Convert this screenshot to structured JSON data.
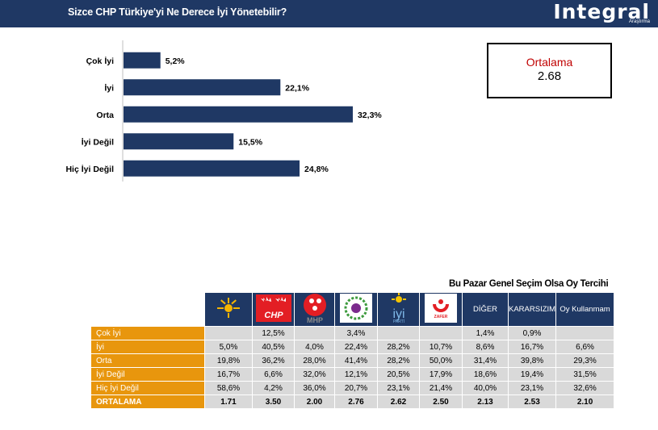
{
  "header": {
    "title": "Sizce CHP Türkiye'yi  Ne Derece İyi Yönetebilir?",
    "logo": "Integral",
    "logo_sub": "Araştırma"
  },
  "colors": {
    "bar": "#1f3864",
    "header": "#1f3864",
    "row_label": "#e8960d",
    "cell": "#d9d9d9",
    "avg_label": "#c00000"
  },
  "chart_data": {
    "type": "bar",
    "orientation": "horizontal",
    "title": "Sizce CHP Türkiye'yi  Ne Derece İyi Yönetebilir?",
    "categories": [
      "Çok İyi",
      "İyi",
      "Orta",
      "İyi Değil",
      "Hiç İyi Değil"
    ],
    "values": [
      5.2,
      22.1,
      32.3,
      15.5,
      24.8
    ],
    "value_labels": [
      "5,2%",
      "22,1%",
      "32,3%",
      "15,5%",
      "24,8%"
    ],
    "unit": "%",
    "xlim": [
      0,
      45
    ]
  },
  "average_box": {
    "label": "Ortalama",
    "value": "2.68"
  },
  "table": {
    "title": "Bu Pazar Genel Seçim Olsa Oy Tercihi",
    "parties": [
      {
        "name": "AK PARTİ",
        "icon": "akp-logo-icon",
        "bg": "#1f3864"
      },
      {
        "name": "CHP",
        "icon": "chp-logo-icon",
        "bg": "#1f3864"
      },
      {
        "name": "MHP",
        "icon": "mhp-logo-icon",
        "bg": "#1f3864"
      },
      {
        "name": "DEM",
        "icon": "dem-logo-icon",
        "bg": "#1f3864"
      },
      {
        "name": "İYİ PARTİ",
        "icon": "iyi-logo-icon",
        "bg": "#1f3864"
      },
      {
        "name": "ZAFER",
        "icon": "zafer-logo-icon",
        "bg": "#1f3864"
      }
    ],
    "extra_columns": [
      "DİĞER",
      "KARARSIZIM",
      "Oy Kullanmam"
    ],
    "rows": [
      {
        "label": "Çok İyi",
        "values": [
          "",
          "12,5%",
          "",
          "3,4%",
          "",
          "",
          "1,4%",
          "0,9%",
          ""
        ]
      },
      {
        "label": "İyi",
        "values": [
          "5,0%",
          "40,5%",
          "4,0%",
          "22,4%",
          "28,2%",
          "10,7%",
          "8,6%",
          "16,7%",
          "6,6%"
        ]
      },
      {
        "label": "Orta",
        "values": [
          "19,8%",
          "36,2%",
          "28,0%",
          "41,4%",
          "28,2%",
          "50,0%",
          "31,4%",
          "39,8%",
          "29,3%"
        ]
      },
      {
        "label": "İyi Değil",
        "values": [
          "16,7%",
          "6,6%",
          "32,0%",
          "12,1%",
          "20,5%",
          "17,9%",
          "18,6%",
          "19,4%",
          "31,5%"
        ]
      },
      {
        "label": "Hiç İyi Değil",
        "values": [
          "58,6%",
          "4,2%",
          "36,0%",
          "20,7%",
          "23,1%",
          "21,4%",
          "40,0%",
          "23,1%",
          "32,6%"
        ]
      }
    ],
    "average_row": {
      "label": "ORTALAMA",
      "values": [
        "1.71",
        "3.50",
        "2.00",
        "2.76",
        "2.62",
        "2.50",
        "2.13",
        "2.53",
        "2.10"
      ]
    }
  }
}
